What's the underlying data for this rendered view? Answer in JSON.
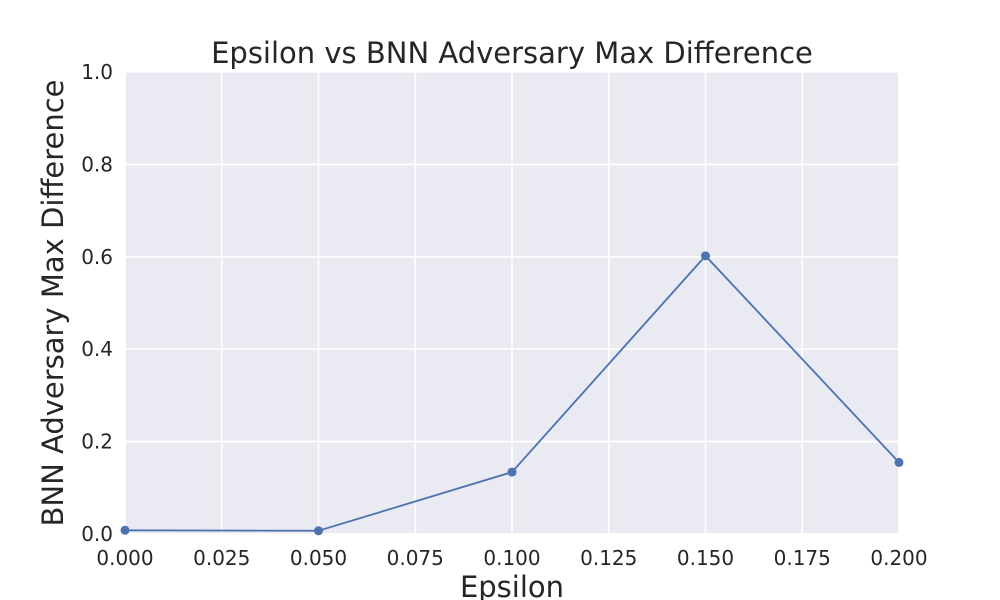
{
  "chart_data": {
    "type": "line",
    "title": "Epsilon vs BNN Adversary Max Difference",
    "xlabel": "Epsilon",
    "ylabel": "BNN Adversary Max Difference",
    "xlim": [
      0.0,
      0.2
    ],
    "ylim": [
      0.0,
      1.0
    ],
    "xticks": [
      "0.000",
      "0.025",
      "0.050",
      "0.075",
      "0.100",
      "0.125",
      "0.150",
      "0.175",
      "0.200"
    ],
    "yticks": [
      "0.0",
      "0.2",
      "0.4",
      "0.6",
      "0.8",
      "1.0"
    ],
    "grid": true,
    "series": [
      {
        "color": "#4c72b0",
        "x": [
          0.0,
          0.05,
          0.1,
          0.15,
          0.2
        ],
        "y": [
          0.008,
          0.007,
          0.134,
          0.602,
          0.155
        ]
      }
    ]
  }
}
